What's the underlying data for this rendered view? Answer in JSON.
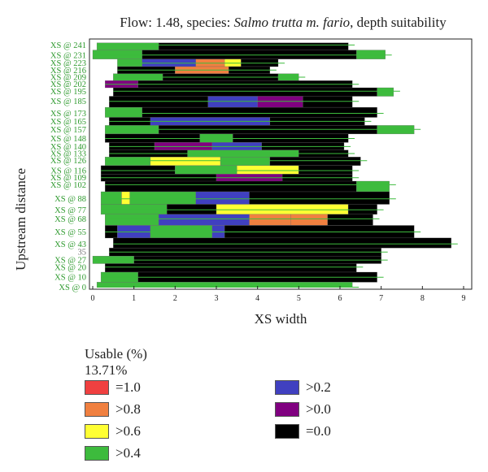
{
  "chart_data": {
    "type": "bar",
    "title_prefix": "Flow: 1.48, species: ",
    "title_species": "Salmo trutta m. fario",
    "title_suffix": ", depth suitability",
    "xlabel": "XS width",
    "ylabel": "Upstream distance",
    "xlim": [
      0,
      9
    ],
    "x_ticks": [
      "0",
      "1",
      "2",
      "3",
      "4",
      "5",
      "6",
      "7",
      "8",
      "9"
    ],
    "y_ticks": [
      "XS @ 241",
      "XS @ 231",
      "XS @ 223",
      "XS @ 216",
      "XS @ 209",
      "XS @ 202",
      "XS @ 195",
      "XS @ 185",
      "XS @ 173",
      "XS @ 165",
      "XS @ 157",
      "XS @ 148",
      "XS @ 140",
      "XS @ 133",
      "XS @ 126",
      "XS @ 116",
      "XS @ 109",
      "XS @ 102",
      "XS @ 88",
      "XS @ 77",
      "XS @ 68",
      "XS @ 55",
      "XS @ 43",
      "35",
      "XS @ 27",
      "XS @ 20",
      "XS @ 10",
      "XS @ 0"
    ],
    "y_tick_values": [
      241,
      231,
      223,
      216,
      209,
      202,
      195,
      185,
      173,
      165,
      157,
      148,
      140,
      133,
      126,
      116,
      109,
      102,
      88,
      77,
      68,
      55,
      43,
      35,
      27,
      20,
      10,
      0
    ],
    "ylim": [
      -2,
      247
    ],
    "legend_title": "Usable (%)",
    "usable_value": "13.71%",
    "legend": [
      {
        "label": "=1.0",
        "color": "#f04040"
      },
      {
        "label": ">0.8",
        "color": "#f08040"
      },
      {
        "label": ">0.6",
        "color": "#ffff33"
      },
      {
        "label": ">0.4",
        "color": "#3dbb3d"
      },
      {
        "label": ">0.2",
        "color": "#4040c0"
      },
      {
        "label": ">0.0",
        "color": "#800080"
      },
      {
        "label": "=0.0",
        "color": "#000000"
      }
    ],
    "sections": [
      {
        "y": 241,
        "segments": [
          [
            0.1,
            1.6,
            ">0.4"
          ],
          [
            1.6,
            6.2,
            "=0.0"
          ]
        ]
      },
      {
        "y": 231,
        "segments": [
          [
            0.0,
            1.2,
            ">0.4"
          ],
          [
            1.2,
            6.4,
            "=0.0"
          ],
          [
            6.4,
            7.1,
            ">0.4"
          ]
        ]
      },
      {
        "y": 223,
        "segments": [
          [
            0.6,
            1.2,
            ">0.4"
          ],
          [
            1.2,
            2.5,
            ">0.2"
          ],
          [
            2.5,
            3.2,
            ">0.8"
          ],
          [
            3.2,
            3.6,
            ">0.6"
          ],
          [
            3.6,
            4.5,
            "=0.0"
          ]
        ]
      },
      {
        "y": 216,
        "segments": [
          [
            0.6,
            2.0,
            "=0.0"
          ],
          [
            2.0,
            3.3,
            ">0.8"
          ],
          [
            3.3,
            4.3,
            "=0.0"
          ]
        ]
      },
      {
        "y": 209,
        "segments": [
          [
            0.5,
            1.7,
            ">0.4"
          ],
          [
            1.7,
            4.5,
            "=0.0"
          ],
          [
            4.5,
            5.0,
            ">0.4"
          ]
        ]
      },
      {
        "y": 202,
        "segments": [
          [
            0.3,
            1.1,
            ">0.0"
          ],
          [
            1.1,
            6.3,
            "=0.0"
          ]
        ]
      },
      {
        "y": 195,
        "segments": [
          [
            0.5,
            6.9,
            "=0.0"
          ],
          [
            6.9,
            7.3,
            ">0.4"
          ]
        ]
      },
      {
        "y": 185,
        "segments": [
          [
            0.4,
            2.8,
            "=0.0"
          ],
          [
            2.8,
            4.0,
            ">0.2"
          ],
          [
            4.0,
            5.1,
            ">0.0"
          ],
          [
            5.1,
            6.3,
            "=0.0"
          ]
        ]
      },
      {
        "y": 173,
        "segments": [
          [
            0.3,
            1.2,
            ">0.4"
          ],
          [
            1.2,
            6.9,
            "=0.0"
          ]
        ]
      },
      {
        "y": 165,
        "segments": [
          [
            0.4,
            1.4,
            "=0.0"
          ],
          [
            1.4,
            4.3,
            ">0.2"
          ],
          [
            4.3,
            6.6,
            "=0.0"
          ]
        ]
      },
      {
        "y": 157,
        "segments": [
          [
            0.3,
            1.6,
            ">0.4"
          ],
          [
            1.6,
            6.9,
            "=0.0"
          ],
          [
            6.9,
            7.8,
            ">0.4"
          ]
        ]
      },
      {
        "y": 148,
        "segments": [
          [
            0.3,
            2.6,
            "=0.0"
          ],
          [
            2.6,
            3.4,
            ">0.4"
          ],
          [
            3.4,
            6.2,
            "=0.0"
          ]
        ]
      },
      {
        "y": 140,
        "segments": [
          [
            0.4,
            1.5,
            "=0.0"
          ],
          [
            1.5,
            2.9,
            ">0.0"
          ],
          [
            2.9,
            4.1,
            ">0.2"
          ],
          [
            4.1,
            6.1,
            "=0.0"
          ]
        ]
      },
      {
        "y": 133,
        "segments": [
          [
            0.4,
            2.3,
            "=0.0"
          ],
          [
            2.3,
            5.0,
            ">0.4"
          ],
          [
            5.0,
            6.2,
            "=0.0"
          ]
        ]
      },
      {
        "y": 126,
        "segments": [
          [
            0.3,
            1.4,
            ">0.4"
          ],
          [
            1.4,
            3.1,
            ">0.6"
          ],
          [
            3.1,
            4.3,
            ">0.4"
          ],
          [
            4.3,
            6.5,
            "=0.0"
          ]
        ]
      },
      {
        "y": 116,
        "segments": [
          [
            0.2,
            2.0,
            "=0.0"
          ],
          [
            2.0,
            3.5,
            ">0.4"
          ],
          [
            3.5,
            5.0,
            ">0.6"
          ],
          [
            5.0,
            6.3,
            "=0.0"
          ]
        ]
      },
      {
        "y": 109,
        "segments": [
          [
            0.2,
            3.0,
            "=0.0"
          ],
          [
            3.0,
            4.6,
            ">0.0"
          ],
          [
            4.6,
            6.3,
            "=0.0"
          ]
        ]
      },
      {
        "y": 102,
        "segments": [
          [
            0.3,
            6.4,
            "=0.0"
          ],
          [
            6.4,
            7.2,
            ">0.4"
          ]
        ]
      },
      {
        "y": 88,
        "segments": [
          [
            0.2,
            0.7,
            ">0.4"
          ],
          [
            0.7,
            0.9,
            ">0.6"
          ],
          [
            0.9,
            2.5,
            ">0.4"
          ],
          [
            2.5,
            3.8,
            ">0.2"
          ],
          [
            3.8,
            7.2,
            "=0.0"
          ]
        ]
      },
      {
        "y": 77,
        "segments": [
          [
            0.2,
            1.8,
            ">0.4"
          ],
          [
            1.8,
            3.0,
            "=0.0"
          ],
          [
            3.0,
            6.2,
            ">0.6"
          ],
          [
            6.2,
            6.9,
            "=0.0"
          ]
        ]
      },
      {
        "y": 68,
        "segments": [
          [
            0.3,
            1.6,
            ">0.4"
          ],
          [
            1.6,
            3.8,
            ">0.2"
          ],
          [
            3.8,
            4.8,
            ">0.8"
          ],
          [
            4.8,
            5.7,
            ">0.8"
          ],
          [
            5.7,
            6.8,
            "=0.0"
          ]
        ]
      },
      {
        "y": 55,
        "segments": [
          [
            0.3,
            0.6,
            "=0.0"
          ],
          [
            0.6,
            1.4,
            ">0.2"
          ],
          [
            1.4,
            2.9,
            ">0.4"
          ],
          [
            2.9,
            3.2,
            ">0.2"
          ],
          [
            3.2,
            7.8,
            "=0.0"
          ]
        ]
      },
      {
        "y": 43,
        "segments": [
          [
            0.5,
            8.7,
            "=0.0"
          ]
        ]
      },
      {
        "y": 35,
        "segments": [
          [
            0.4,
            7.0,
            "=0.0"
          ]
        ]
      },
      {
        "y": 27,
        "segments": [
          [
            0.0,
            1.0,
            ">0.4"
          ],
          [
            1.0,
            7.0,
            "=0.0"
          ]
        ]
      },
      {
        "y": 20,
        "segments": [
          [
            0.3,
            6.4,
            "=0.0"
          ]
        ]
      },
      {
        "y": 10,
        "segments": [
          [
            0.2,
            1.1,
            ">0.4"
          ],
          [
            1.1,
            6.9,
            "=0.0"
          ]
        ]
      },
      {
        "y": 0,
        "segments": [
          [
            0.1,
            6.3,
            ">0.4"
          ]
        ]
      }
    ]
  }
}
